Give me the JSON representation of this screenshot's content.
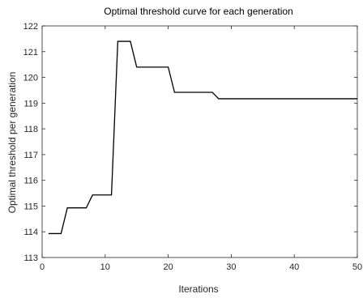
{
  "chart_data": {
    "type": "line",
    "title": "Optimal threshold curve for each generation",
    "xlabel": "Iterations",
    "ylabel": "Optimal threshold per generation",
    "xlim": [
      0,
      50
    ],
    "ylim": [
      113,
      122
    ],
    "xticks": [
      "0",
      "10",
      "20",
      "30",
      "40",
      "50"
    ],
    "yticks": [
      "113",
      "114",
      "115",
      "116",
      "117",
      "118",
      "119",
      "120",
      "121",
      "122"
    ],
    "grid": false,
    "legend": "none",
    "line_color": "#000000",
    "series": [
      {
        "x": [
          1,
          2,
          3,
          4,
          5,
          6,
          7,
          8,
          9,
          10,
          11,
          12,
          13,
          14,
          15,
          16,
          17,
          18,
          19,
          20,
          21,
          22,
          23,
          24,
          25,
          26,
          27,
          28,
          29,
          30,
          31,
          32,
          33,
          34,
          35,
          36,
          37,
          38,
          39,
          40,
          41,
          42,
          43,
          44,
          45,
          46,
          47,
          48,
          49,
          50
        ],
        "y": [
          113.93,
          113.93,
          113.93,
          114.93,
          114.93,
          114.93,
          114.93,
          115.43,
          115.43,
          115.43,
          115.43,
          121.4,
          121.4,
          121.4,
          120.4,
          120.4,
          120.4,
          120.4,
          120.4,
          120.4,
          119.42,
          119.42,
          119.42,
          119.42,
          119.42,
          119.42,
          119.42,
          119.17,
          119.17,
          119.17,
          119.17,
          119.17,
          119.17,
          119.17,
          119.17,
          119.17,
          119.17,
          119.17,
          119.17,
          119.17,
          119.17,
          119.17,
          119.17,
          119.17,
          119.17,
          119.17,
          119.17,
          119.17,
          119.17,
          119.17
        ]
      }
    ]
  }
}
